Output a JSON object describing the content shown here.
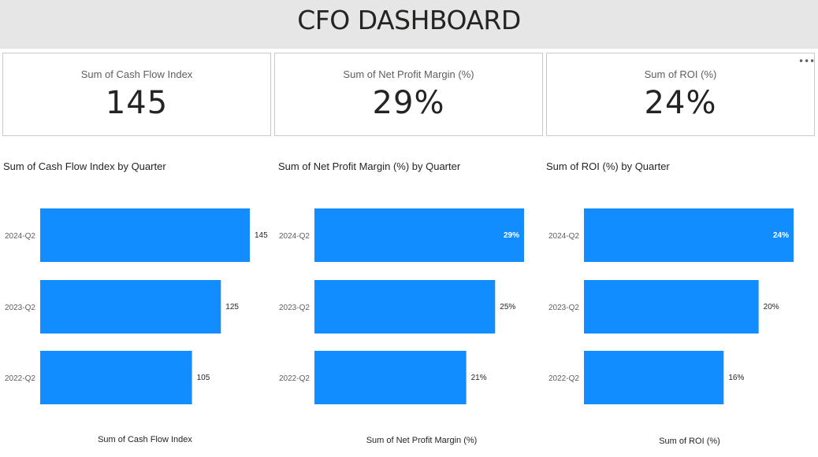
{
  "dashboard": {
    "title": "CFO DASHBOARD"
  },
  "cards": [
    {
      "label": "Sum of Cash Flow Index",
      "value": "145"
    },
    {
      "label": "Sum of Net Profit Margin (%)",
      "value": "29%"
    },
    {
      "label": "Sum of ROI (%)",
      "value": "24%"
    }
  ],
  "more_options_icon": "more-horizontal-icon",
  "colors": {
    "bar": "#118dff",
    "title_bar": "#e6e6e6",
    "card_border": "#c8c8c8"
  },
  "chart_data": [
    {
      "type": "bar",
      "orientation": "horizontal",
      "title": "Sum of Cash Flow Index by Quarter",
      "xlabel": "Sum of Cash Flow Index",
      "ylabel": "",
      "categories": [
        "2024-Q2",
        "2023-Q2",
        "2022-Q2"
      ],
      "values": [
        145,
        125,
        105
      ],
      "data_labels": [
        "145",
        "125",
        "105"
      ],
      "label_inside": [
        false,
        false,
        false
      ],
      "xlim": [
        0,
        145
      ]
    },
    {
      "type": "bar",
      "orientation": "horizontal",
      "title": "Sum of Net Profit Margin (%) by Quarter",
      "xlabel": "Sum of Net Profit Margin (%)",
      "ylabel": "",
      "categories": [
        "2024-Q2",
        "2023-Q2",
        "2022-Q2"
      ],
      "values": [
        29,
        25,
        21
      ],
      "data_labels": [
        "29%",
        "25%",
        "21%"
      ],
      "label_inside": [
        true,
        false,
        false
      ],
      "xlim": [
        0,
        29
      ]
    },
    {
      "type": "bar",
      "orientation": "horizontal",
      "title": "Sum of ROI (%) by Quarter",
      "xlabel": "Sum of ROI (%)",
      "ylabel": "",
      "categories": [
        "2024-Q2",
        "2023-Q2",
        "2022-Q2"
      ],
      "values": [
        24,
        20,
        16
      ],
      "data_labels": [
        "24%",
        "20%",
        "16%"
      ],
      "label_inside": [
        true,
        false,
        false
      ],
      "xlim": [
        0,
        24
      ]
    }
  ]
}
